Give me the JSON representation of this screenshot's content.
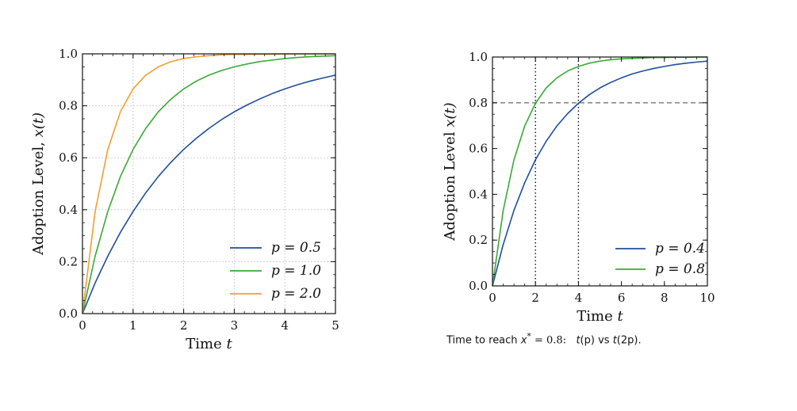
{
  "chart_data": [
    {
      "type": "line",
      "title": "",
      "xlabel": "Time t",
      "ylabel": "Adoption Level, x(t)",
      "xlim": [
        0,
        5
      ],
      "ylim": [
        0,
        1
      ],
      "xticks": [
        "0",
        "1",
        "2",
        "3",
        "4",
        "5"
      ],
      "yticks": [
        "0.0",
        "0.2",
        "0.4",
        "0.6",
        "0.8",
        "1.0"
      ],
      "grid": true,
      "legend_position": "lower-right",
      "x": [
        0,
        0.25,
        0.5,
        0.75,
        1,
        1.25,
        1.5,
        1.75,
        2,
        2.25,
        2.5,
        2.75,
        3,
        3.25,
        3.5,
        3.75,
        4,
        4.25,
        4.5,
        4.75,
        5
      ],
      "series": [
        {
          "name": "p = 0.5",
          "color": "#1f4e9c",
          "values": [
            0,
            0.118,
            0.221,
            0.313,
            0.393,
            0.465,
            0.528,
            0.583,
            0.632,
            0.675,
            0.713,
            0.747,
            0.777,
            0.803,
            0.826,
            0.847,
            0.865,
            0.881,
            0.895,
            0.907,
            0.918
          ]
        },
        {
          "name": "p = 1.0",
          "color": "#3aaa35",
          "values": [
            0,
            0.221,
            0.393,
            0.528,
            0.632,
            0.713,
            0.777,
            0.826,
            0.865,
            0.895,
            0.918,
            0.936,
            0.95,
            0.961,
            0.97,
            0.976,
            0.982,
            0.986,
            0.989,
            0.991,
            0.993
          ]
        },
        {
          "name": "p = 2.0",
          "color": "#f0a030",
          "values": [
            0,
            0.393,
            0.632,
            0.777,
            0.865,
            0.918,
            0.95,
            0.97,
            0.982,
            0.989,
            0.993,
            0.996,
            0.998,
            0.998,
            0.999,
            0.999,
            1.0,
            1.0,
            1.0,
            1.0,
            1.0
          ]
        }
      ]
    },
    {
      "type": "line",
      "title": "",
      "xlabel": "Time t",
      "ylabel": "Adoption Level x(t)",
      "xlim": [
        0,
        10
      ],
      "ylim": [
        0,
        1
      ],
      "xticks": [
        "0",
        "2",
        "4",
        "6",
        "8",
        "10"
      ],
      "yticks": [
        "0.0",
        "0.2",
        "0.4",
        "0.6",
        "0.8",
        "1.0"
      ],
      "grid": false,
      "legend_position": "lower-right",
      "x": [
        0,
        0.5,
        1,
        1.5,
        2,
        2.5,
        3,
        3.5,
        4,
        4.5,
        5,
        5.5,
        6,
        6.5,
        7,
        7.5,
        8,
        8.5,
        9,
        9.5,
        10
      ],
      "series": [
        {
          "name": "p = 0.4",
          "color": "#1f4e9c",
          "values": [
            0,
            0.181,
            0.33,
            0.451,
            0.551,
            0.632,
            0.699,
            0.753,
            0.798,
            0.835,
            0.865,
            0.889,
            0.909,
            0.926,
            0.939,
            0.95,
            0.959,
            0.967,
            0.973,
            0.978,
            0.982
          ]
        },
        {
          "name": "p = 0.8",
          "color": "#3aaa35",
          "values": [
            0,
            0.33,
            0.551,
            0.699,
            0.798,
            0.865,
            0.909,
            0.939,
            0.959,
            0.973,
            0.982,
            0.988,
            0.992,
            0.994,
            0.996,
            0.998,
            0.998,
            0.999,
            0.999,
            1.0,
            1.0
          ]
        }
      ],
      "reference_lines": {
        "horizontal_y": 0.8,
        "vertical_x": [
          2,
          4
        ]
      }
    }
  ],
  "caption": {
    "prefix": "Time to reach ",
    "var": "x",
    "star": "*",
    "eq": " = 0.8:",
    "rest1": "t",
    "paren1": "(p)",
    "vs": " vs ",
    "rest2": "t",
    "paren2": "(2p)",
    "end": "."
  }
}
